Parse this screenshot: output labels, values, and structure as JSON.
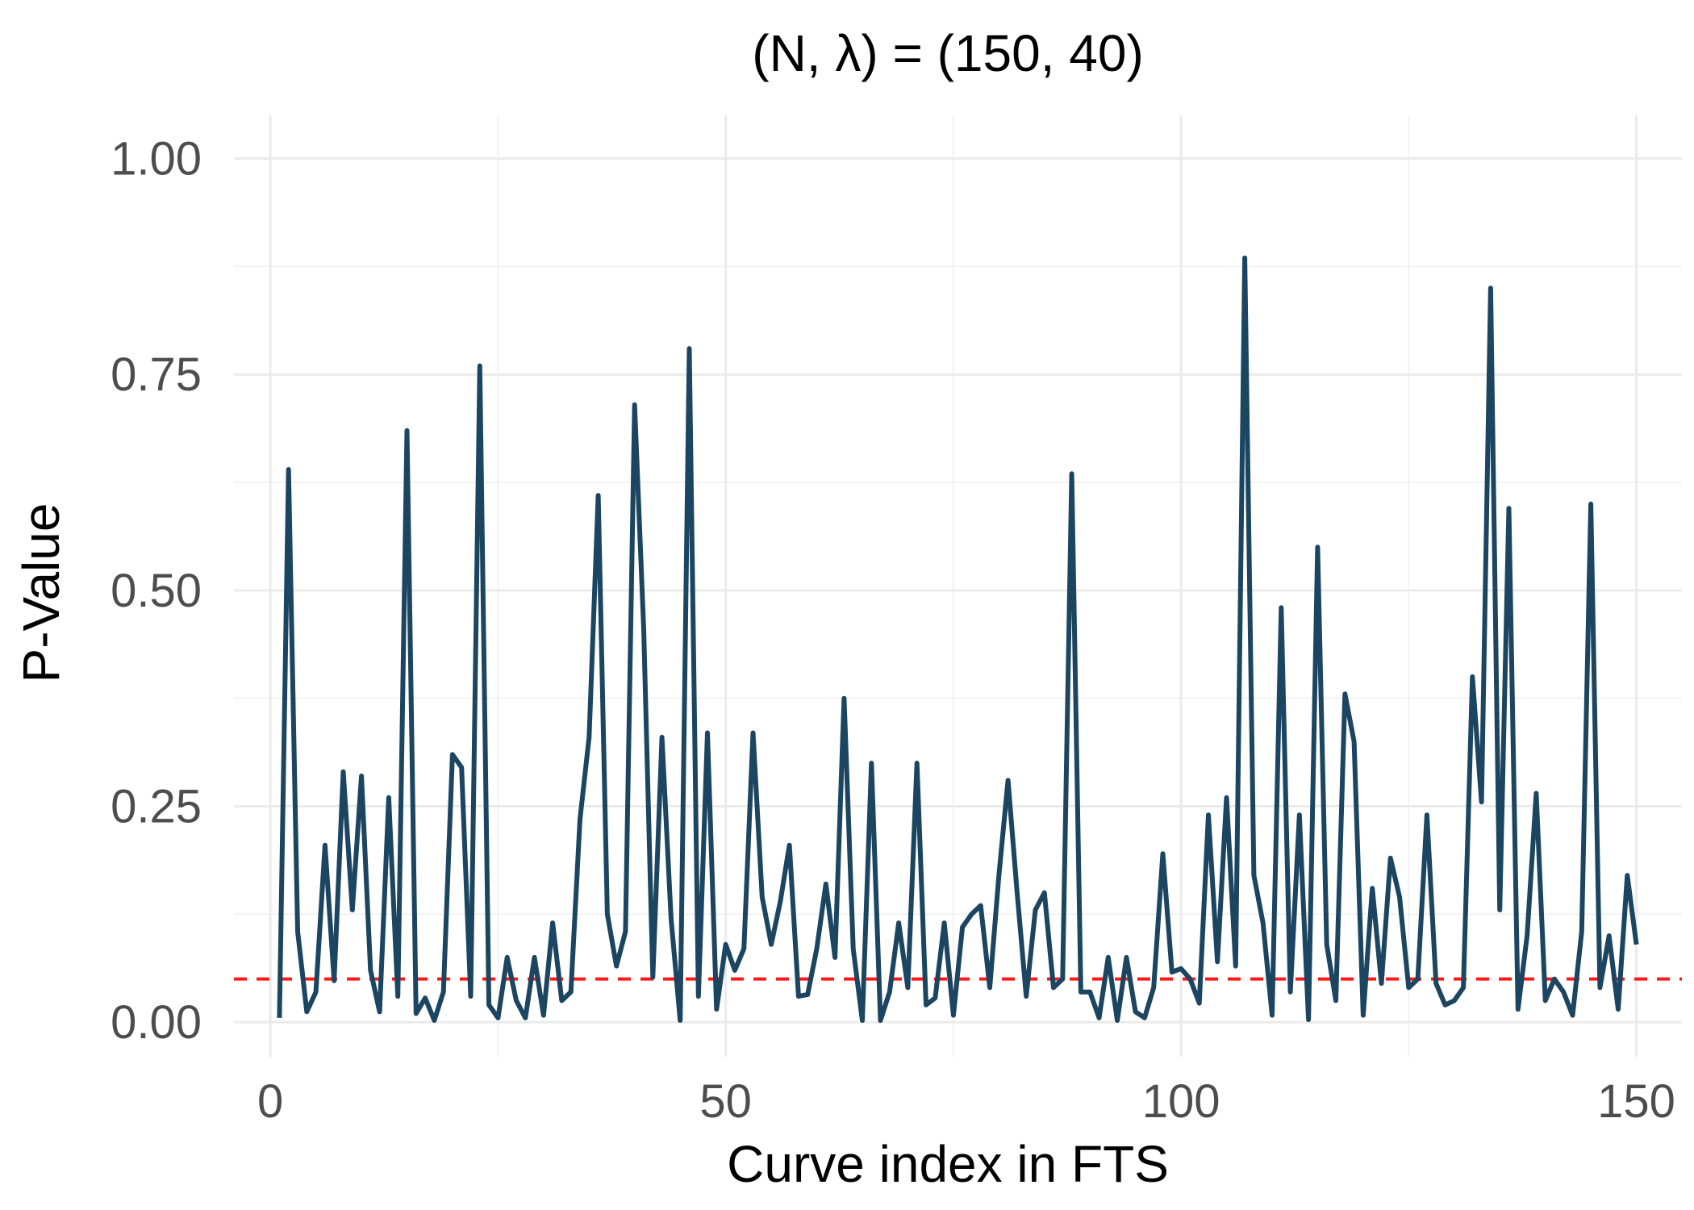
{
  "chart_data": {
    "type": "line",
    "title": "(N, λ) = (150, 40)",
    "xlabel": "Curve index in FTS",
    "ylabel": "P-Value",
    "xlim": [
      -4,
      155
    ],
    "ylim": [
      -0.04,
      1.05
    ],
    "x_ticks": [
      0,
      50,
      100,
      150
    ],
    "x_tick_labels": [
      "0",
      "50",
      "100",
      "150"
    ],
    "y_ticks": [
      0,
      0.25,
      0.5,
      0.75,
      1.0
    ],
    "y_tick_labels": [
      "0.00",
      "0.25",
      "0.50",
      "0.75",
      "1.00"
    ],
    "x_minor_ticks": [
      25,
      75,
      125
    ],
    "y_minor_ticks": [
      0.125,
      0.375,
      0.625,
      0.875
    ],
    "grid": true,
    "line_color": "#1b4560",
    "threshold": {
      "value": 0.05,
      "color": "#ff1a1a",
      "style": "dashed"
    },
    "series": [
      {
        "values": [
          0.005,
          0.64,
          0.105,
          0.012,
          0.035,
          0.205,
          0.048,
          0.29,
          0.13,
          0.285,
          0.06,
          0.012,
          0.26,
          0.03,
          0.685,
          0.01,
          0.028,
          0.002,
          0.035,
          0.31,
          0.295,
          0.03,
          0.76,
          0.02,
          0.005,
          0.075,
          0.025,
          0.005,
          0.075,
          0.008,
          0.115,
          0.025,
          0.035,
          0.235,
          0.33,
          0.61,
          0.125,
          0.065,
          0.105,
          0.715,
          0.455,
          0.052,
          0.33,
          0.12,
          0.002,
          0.78,
          0.03,
          0.335,
          0.015,
          0.09,
          0.06,
          0.085,
          0.335,
          0.145,
          0.09,
          0.14,
          0.205,
          0.03,
          0.032,
          0.085,
          0.16,
          0.075,
          0.375,
          0.085,
          0.002,
          0.3,
          0.002,
          0.035,
          0.115,
          0.04,
          0.3,
          0.02,
          0.028,
          0.115,
          0.008,
          0.11,
          0.125,
          0.135,
          0.04,
          0.17,
          0.28,
          0.15,
          0.03,
          0.13,
          0.15,
          0.04,
          0.05,
          0.635,
          0.035,
          0.035,
          0.005,
          0.075,
          0.002,
          0.075,
          0.012,
          0.005,
          0.04,
          0.195,
          0.058,
          0.062,
          0.05,
          0.022,
          0.24,
          0.07,
          0.26,
          0.065,
          0.885,
          0.17,
          0.115,
          0.008,
          0.48,
          0.035,
          0.24,
          0.003,
          0.55,
          0.09,
          0.025,
          0.38,
          0.325,
          0.008,
          0.155,
          0.045,
          0.19,
          0.145,
          0.04,
          0.05,
          0.24,
          0.045,
          0.02,
          0.025,
          0.04,
          0.4,
          0.255,
          0.85,
          0.13,
          0.595,
          0.015,
          0.1,
          0.265,
          0.025,
          0.05,
          0.035,
          0.008,
          0.105,
          0.6,
          0.04,
          0.1,
          0.015,
          0.17,
          0.09
        ]
      }
    ]
  }
}
